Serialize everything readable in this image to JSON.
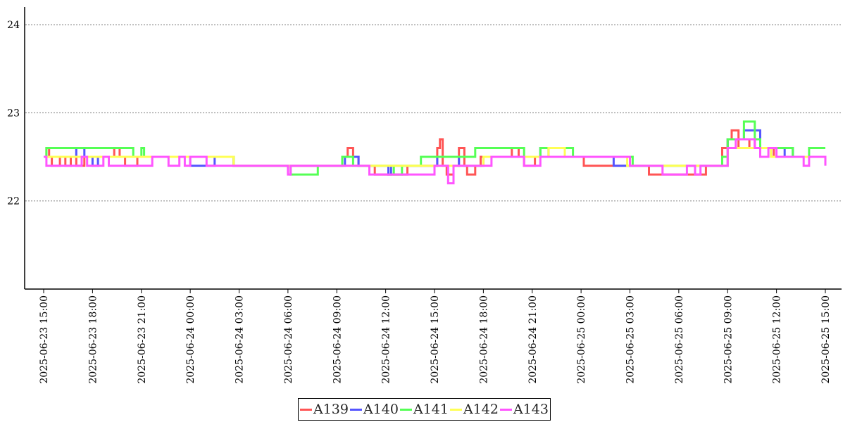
{
  "chart_data": {
    "type": "line",
    "title": "",
    "xlabel": "",
    "ylabel": "",
    "ylim": [
      21,
      24.2
    ],
    "yticks": [
      22,
      23,
      24
    ],
    "xlim": [
      "2025-06-23 15:00",
      "2025-06-25 15:00"
    ],
    "xtick_labels": [
      "2025-06-23 15:00",
      "2025-06-23 18:00",
      "2025-06-23 21:00",
      "2025-06-24 00:00",
      "2025-06-24 03:00",
      "2025-06-24 06:00",
      "2025-06-24 09:00",
      "2025-06-24 12:00",
      "2025-06-24 15:00",
      "2025-06-24 18:00",
      "2025-06-24 21:00",
      "2025-06-25 00:00",
      "2025-06-25 03:00",
      "2025-06-25 06:00",
      "2025-06-25 09:00",
      "2025-06-25 12:00",
      "2025-06-25 15:00"
    ],
    "grid": "horizontal dotted",
    "legend_position": "bottom-center",
    "series": [
      {
        "name": "A139",
        "color": "#ff5555",
        "points": [
          [
            "2025-06-23 15:00",
            22.5
          ],
          [
            "2025-06-23 15:10",
            22.6
          ],
          [
            "2025-06-23 15:20",
            22.5
          ],
          [
            "2025-06-23 15:30",
            22.4
          ],
          [
            "2025-06-23 16:00",
            22.5
          ],
          [
            "2025-06-23 16:20",
            22.4
          ],
          [
            "2025-06-23 16:40",
            22.5
          ],
          [
            "2025-06-23 17:00",
            22.4
          ],
          [
            "2025-06-23 17:30",
            22.5
          ],
          [
            "2025-06-23 18:00",
            22.5
          ],
          [
            "2025-06-23 19:00",
            22.5
          ],
          [
            "2025-06-23 19:20",
            22.6
          ],
          [
            "2025-06-23 19:40",
            22.5
          ],
          [
            "2025-06-23 20:00",
            22.4
          ],
          [
            "2025-06-23 20:45",
            22.5
          ],
          [
            "2025-06-24 00:00",
            22.5
          ],
          [
            "2025-06-24 02:30",
            22.5
          ],
          [
            "2025-06-24 02:40",
            22.4
          ],
          [
            "2025-06-24 09:00",
            22.4
          ],
          [
            "2025-06-24 09:20",
            22.5
          ],
          [
            "2025-06-24 09:40",
            22.6
          ],
          [
            "2025-06-24 10:00",
            22.5
          ],
          [
            "2025-06-24 10:20",
            22.4
          ],
          [
            "2025-06-24 11:00",
            22.4
          ],
          [
            "2025-06-24 11:20",
            22.3
          ],
          [
            "2025-06-24 13:00",
            22.3
          ],
          [
            "2025-06-24 13:20",
            22.4
          ],
          [
            "2025-06-24 15:00",
            22.4
          ],
          [
            "2025-06-24 15:10",
            22.6
          ],
          [
            "2025-06-24 15:20",
            22.7
          ],
          [
            "2025-06-24 15:30",
            22.4
          ],
          [
            "2025-06-24 15:45",
            22.3
          ],
          [
            "2025-06-24 16:10",
            22.4
          ],
          [
            "2025-06-24 16:30",
            22.6
          ],
          [
            "2025-06-24 16:50",
            22.4
          ],
          [
            "2025-06-24 17:00",
            22.3
          ],
          [
            "2025-06-24 17:30",
            22.4
          ],
          [
            "2025-06-24 17:50",
            22.5
          ],
          [
            "2025-06-24 19:30",
            22.5
          ],
          [
            "2025-06-24 19:45",
            22.6
          ],
          [
            "2025-06-24 20:10",
            22.5
          ],
          [
            "2025-06-24 20:30",
            22.4
          ],
          [
            "2025-06-24 21:00",
            22.4
          ],
          [
            "2025-06-24 21:10",
            22.5
          ],
          [
            "2025-06-24 22:00",
            22.5
          ],
          [
            "2025-06-24 23:59",
            22.5
          ],
          [
            "2025-06-25 00:10",
            22.4
          ],
          [
            "2025-06-25 03:00",
            22.4
          ],
          [
            "2025-06-25 04:00",
            22.4
          ],
          [
            "2025-06-25 04:10",
            22.3
          ],
          [
            "2025-06-25 07:30",
            22.3
          ],
          [
            "2025-06-25 07:40",
            22.4
          ],
          [
            "2025-06-25 08:30",
            22.4
          ],
          [
            "2025-06-25 08:40",
            22.6
          ],
          [
            "2025-06-25 09:00",
            22.7
          ],
          [
            "2025-06-25 09:15",
            22.8
          ],
          [
            "2025-06-25 09:40",
            22.6
          ],
          [
            "2025-06-25 10:20",
            22.7
          ],
          [
            "2025-06-25 10:40",
            22.6
          ],
          [
            "2025-06-25 11:00",
            22.6
          ],
          [
            "2025-06-25 11:40",
            22.6
          ],
          [
            "2025-06-25 11:50",
            22.5
          ],
          [
            "2025-06-25 15:00",
            22.5
          ]
        ]
      },
      {
        "name": "A140",
        "color": "#5555ff",
        "points": [
          [
            "2025-06-23 15:00",
            22.5
          ],
          [
            "2025-06-23 15:30",
            22.5
          ],
          [
            "2025-06-23 16:30",
            22.5
          ],
          [
            "2025-06-23 17:00",
            22.6
          ],
          [
            "2025-06-23 17:30",
            22.5
          ],
          [
            "2025-06-23 18:00",
            22.4
          ],
          [
            "2025-06-23 18:20",
            22.5
          ],
          [
            "2025-06-24 00:00",
            22.4
          ],
          [
            "2025-06-24 01:30",
            22.5
          ],
          [
            "2025-06-24 02:40",
            22.4
          ],
          [
            "2025-06-24 09:00",
            22.4
          ],
          [
            "2025-06-24 09:30",
            22.5
          ],
          [
            "2025-06-24 10:20",
            22.4
          ],
          [
            "2025-06-24 12:00",
            22.4
          ],
          [
            "2025-06-24 12:10",
            22.3
          ],
          [
            "2025-06-24 12:20",
            22.4
          ],
          [
            "2025-06-24 15:00",
            22.4
          ],
          [
            "2025-06-24 15:10",
            22.5
          ],
          [
            "2025-06-24 16:30",
            22.4
          ],
          [
            "2025-06-24 18:00",
            22.5
          ],
          [
            "2025-06-24 20:00",
            22.5
          ],
          [
            "2025-06-24 21:30",
            22.6
          ],
          [
            "2025-06-24 22:00",
            22.5
          ],
          [
            "2025-06-25 00:00",
            22.5
          ],
          [
            "2025-06-25 02:00",
            22.4
          ],
          [
            "2025-06-25 02:40",
            22.4
          ],
          [
            "2025-06-25 03:00",
            22.4
          ],
          [
            "2025-06-25 08:40",
            22.4
          ],
          [
            "2025-06-25 09:00",
            22.7
          ],
          [
            "2025-06-25 09:40",
            22.7
          ],
          [
            "2025-06-25 10:00",
            22.8
          ],
          [
            "2025-06-25 10:40",
            22.8
          ],
          [
            "2025-06-25 11:00",
            22.6
          ],
          [
            "2025-06-25 11:40",
            22.5
          ],
          [
            "2025-06-25 12:30",
            22.6
          ],
          [
            "2025-06-25 13:00",
            22.5
          ],
          [
            "2025-06-25 14:00",
            22.5
          ],
          [
            "2025-06-25 15:00",
            22.5
          ]
        ]
      },
      {
        "name": "A141",
        "color": "#55ff55",
        "points": [
          [
            "2025-06-23 15:00",
            22.5
          ],
          [
            "2025-06-23 15:10",
            22.6
          ],
          [
            "2025-06-23 18:00",
            22.6
          ],
          [
            "2025-06-23 18:30",
            22.6
          ],
          [
            "2025-06-23 19:30",
            22.6
          ],
          [
            "2025-06-23 20:30",
            22.5
          ],
          [
            "2025-06-23 21:00",
            22.6
          ],
          [
            "2025-06-23 21:10",
            22.5
          ],
          [
            "2025-06-24 00:00",
            22.5
          ],
          [
            "2025-06-24 02:00",
            22.5
          ],
          [
            "2025-06-24 02:40",
            22.4
          ],
          [
            "2025-06-24 06:00",
            22.4
          ],
          [
            "2025-06-24 06:10",
            22.3
          ],
          [
            "2025-06-24 07:40",
            22.3
          ],
          [
            "2025-06-24 07:50",
            22.4
          ],
          [
            "2025-06-24 09:00",
            22.4
          ],
          [
            "2025-06-24 09:20",
            22.5
          ],
          [
            "2025-06-24 10:00",
            22.4
          ],
          [
            "2025-06-24 12:00",
            22.4
          ],
          [
            "2025-06-24 12:30",
            22.3
          ],
          [
            "2025-06-24 13:00",
            22.4
          ],
          [
            "2025-06-24 14:10",
            22.5
          ],
          [
            "2025-06-24 17:00",
            22.5
          ],
          [
            "2025-06-24 17:30",
            22.6
          ],
          [
            "2025-06-24 20:00",
            22.6
          ],
          [
            "2025-06-24 20:30",
            22.5
          ],
          [
            "2025-06-24 21:30",
            22.6
          ],
          [
            "2025-06-24 23:20",
            22.6
          ],
          [
            "2025-06-24 23:30",
            22.5
          ],
          [
            "2025-06-25 03:00",
            22.5
          ],
          [
            "2025-06-25 03:10",
            22.4
          ],
          [
            "2025-06-25 08:30",
            22.4
          ],
          [
            "2025-06-25 08:40",
            22.5
          ],
          [
            "2025-06-25 09:00",
            22.7
          ],
          [
            "2025-06-25 09:40",
            22.7
          ],
          [
            "2025-06-25 10:00",
            22.9
          ],
          [
            "2025-06-25 10:30",
            22.9
          ],
          [
            "2025-06-25 10:40",
            22.7
          ],
          [
            "2025-06-25 11:00",
            22.6
          ],
          [
            "2025-06-25 12:00",
            22.6
          ],
          [
            "2025-06-25 13:00",
            22.5
          ],
          [
            "2025-06-25 14:00",
            22.6
          ],
          [
            "2025-06-25 15:00",
            22.6
          ]
        ]
      },
      {
        "name": "A142",
        "color": "#ffff55",
        "points": [
          [
            "2025-06-23 15:00",
            22.5
          ],
          [
            "2025-06-24 00:00",
            22.5
          ],
          [
            "2025-06-24 02:40",
            22.4
          ],
          [
            "2025-06-24 09:00",
            22.4
          ],
          [
            "2025-06-24 10:20",
            22.4
          ],
          [
            "2025-06-24 18:00",
            22.5
          ],
          [
            "2025-06-24 21:00",
            22.5
          ],
          [
            "2025-06-24 22:00",
            22.6
          ],
          [
            "2025-06-24 23:00",
            22.5
          ],
          [
            "2025-06-25 02:00",
            22.5
          ],
          [
            "2025-06-25 02:50",
            22.4
          ],
          [
            "2025-06-25 08:40",
            22.4
          ],
          [
            "2025-06-25 09:00",
            22.6
          ],
          [
            "2025-06-25 11:00",
            22.6
          ],
          [
            "2025-06-25 11:40",
            22.5
          ],
          [
            "2025-06-25 15:00",
            22.5
          ]
        ]
      },
      {
        "name": "A143",
        "color": "#ff55ff",
        "points": [
          [
            "2025-06-23 15:00",
            22.5
          ],
          [
            "2025-06-23 15:10",
            22.4
          ],
          [
            "2025-06-23 17:00",
            22.4
          ],
          [
            "2025-06-23 17:20",
            22.5
          ],
          [
            "2025-06-23 17:40",
            22.4
          ],
          [
            "2025-06-23 18:20",
            22.4
          ],
          [
            "2025-06-23 18:40",
            22.5
          ],
          [
            "2025-06-23 19:00",
            22.4
          ],
          [
            "2025-06-23 20:00",
            22.4
          ],
          [
            "2025-06-23 20:30",
            22.4
          ],
          [
            "2025-06-23 21:30",
            22.4
          ],
          [
            "2025-06-23 21:40",
            22.5
          ],
          [
            "2025-06-23 22:40",
            22.4
          ],
          [
            "2025-06-23 23:20",
            22.5
          ],
          [
            "2025-06-23 23:40",
            22.4
          ],
          [
            "2025-06-24 00:00",
            22.5
          ],
          [
            "2025-06-24 01:00",
            22.4
          ],
          [
            "2025-06-24 02:40",
            22.4
          ],
          [
            "2025-06-24 05:50",
            22.4
          ],
          [
            "2025-06-24 06:00",
            22.3
          ],
          [
            "2025-06-24 06:10",
            22.4
          ],
          [
            "2025-06-24 09:00",
            22.4
          ],
          [
            "2025-06-24 10:20",
            22.4
          ],
          [
            "2025-06-24 11:00",
            22.3
          ],
          [
            "2025-06-24 14:30",
            22.3
          ],
          [
            "2025-06-24 15:00",
            22.4
          ],
          [
            "2025-06-24 15:50",
            22.2
          ],
          [
            "2025-06-24 16:10",
            22.4
          ],
          [
            "2025-06-24 17:50",
            22.4
          ],
          [
            "2025-06-24 18:30",
            22.5
          ],
          [
            "2025-06-24 20:30",
            22.4
          ],
          [
            "2025-06-24 21:00",
            22.4
          ],
          [
            "2025-06-24 21:30",
            22.5
          ],
          [
            "2025-06-25 00:00",
            22.5
          ],
          [
            "2025-06-25 03:00",
            22.4
          ],
          [
            "2025-06-25 04:40",
            22.4
          ],
          [
            "2025-06-25 05:00",
            22.3
          ],
          [
            "2025-06-25 06:00",
            22.3
          ],
          [
            "2025-06-25 06:30",
            22.4
          ],
          [
            "2025-06-25 07:00",
            22.3
          ],
          [
            "2025-06-25 07:20",
            22.4
          ],
          [
            "2025-06-25 08:40",
            22.4
          ],
          [
            "2025-06-25 09:00",
            22.6
          ],
          [
            "2025-06-25 09:30",
            22.7
          ],
          [
            "2025-06-25 10:40",
            22.6
          ],
          [
            "2025-06-25 11:00",
            22.5
          ],
          [
            "2025-06-25 11:30",
            22.6
          ],
          [
            "2025-06-25 12:00",
            22.5
          ],
          [
            "2025-06-25 13:40",
            22.4
          ],
          [
            "2025-06-25 14:00",
            22.5
          ],
          [
            "2025-06-25 15:00",
            22.4
          ]
        ]
      }
    ]
  }
}
